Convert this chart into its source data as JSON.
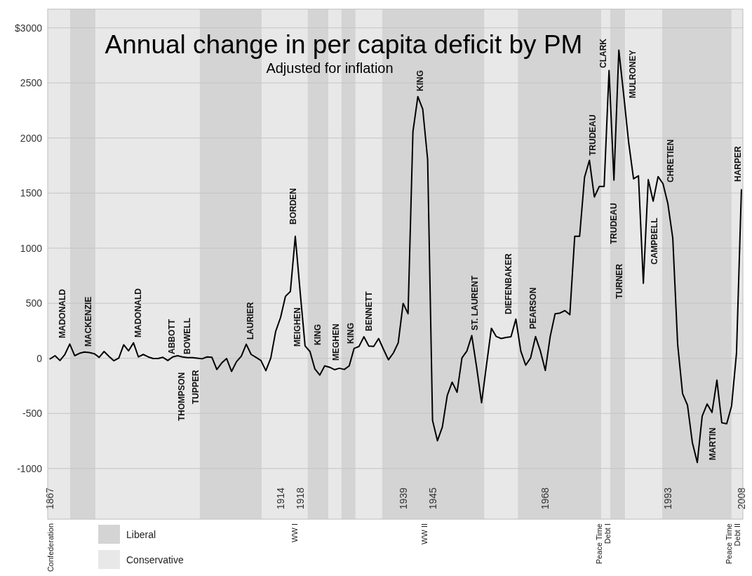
{
  "chart_data": {
    "type": "line",
    "title": "Annual change in per capita deficit by PM",
    "subtitle": "Adjusted for inflation",
    "x": [
      1867,
      1868,
      1869,
      1870,
      1871,
      1872,
      1873,
      1874,
      1875,
      1876,
      1877,
      1878,
      1879,
      1880,
      1881,
      1882,
      1883,
      1884,
      1885,
      1886,
      1887,
      1888,
      1889,
      1890,
      1891,
      1892,
      1893,
      1894,
      1895,
      1896,
      1897,
      1898,
      1899,
      1900,
      1901,
      1902,
      1903,
      1904,
      1905,
      1906,
      1907,
      1908,
      1909,
      1910,
      1911,
      1912,
      1913,
      1914,
      1915,
      1916,
      1917,
      1918,
      1919,
      1920,
      1921,
      1922,
      1923,
      1924,
      1925,
      1926,
      1927,
      1928,
      1929,
      1930,
      1931,
      1932,
      1933,
      1934,
      1935,
      1936,
      1937,
      1938,
      1939,
      1940,
      1941,
      1942,
      1943,
      1944,
      1945,
      1946,
      1947,
      1948,
      1949,
      1950,
      1951,
      1952,
      1953,
      1954,
      1955,
      1956,
      1957,
      1958,
      1959,
      1960,
      1961,
      1962,
      1963,
      1964,
      1965,
      1966,
      1967,
      1968,
      1969,
      1970,
      1971,
      1972,
      1973,
      1974,
      1975,
      1976,
      1977,
      1978,
      1979,
      1980,
      1981,
      1982,
      1983,
      1984,
      1985,
      1986,
      1987,
      1988,
      1989,
      1990,
      1991,
      1992,
      1993,
      1994,
      1995,
      1996,
      1997,
      1998,
      1999,
      2000,
      2001,
      2002,
      2003,
      2004,
      2005,
      2006,
      2007,
      2008
    ],
    "values": [
      -5,
      24,
      -20,
      35,
      130,
      24,
      46,
      57,
      53,
      42,
      9,
      62,
      18,
      -22,
      2,
      123,
      68,
      141,
      13,
      35,
      13,
      -2,
      -2,
      9,
      -20,
      13,
      24,
      13,
      7,
      7,
      2,
      -4,
      13,
      9,
      -101,
      -42,
      -2,
      -119,
      -31,
      20,
      128,
      35,
      9,
      -20,
      -112,
      2,
      244,
      371,
      563,
      607,
      1108,
      600,
      112,
      62,
      -97,
      -152,
      -68,
      -81,
      -103,
      -90,
      -101,
      -68,
      90,
      108,
      196,
      112,
      108,
      180,
      81,
      -13,
      48,
      141,
      499,
      405,
      2057,
      2376,
      2261,
      1805,
      -563,
      -748,
      -623,
      -337,
      -216,
      -308,
      4,
      66,
      207,
      -84,
      -403,
      -62,
      273,
      198,
      180,
      189,
      196,
      356,
      66,
      -62,
      4,
      198,
      66,
      -110,
      198,
      405,
      411,
      433,
      396,
      1108,
      1108,
      1643,
      1798,
      1465,
      1560,
      1560,
      2613,
      1618,
      2798,
      2388,
      1960,
      1630,
      1657,
      681,
      1623,
      1427,
      1650,
      1586,
      1404,
      1092,
      125,
      -321,
      -425,
      -766,
      -946,
      -524,
      -414,
      -491,
      -198,
      -585,
      -594,
      -431,
      48,
      1530
    ],
    "color": "#000000",
    "line_style": "solid",
    "xlim": [
      1866.5,
      2008.3
    ],
    "ylim": [
      -1460,
      3170
    ],
    "xticks": [
      1867,
      1914,
      1918,
      1939,
      1945,
      1968,
      1993,
      2008
    ],
    "yticks": [
      -1000,
      -500,
      0,
      500,
      1000,
      1500,
      2000,
      2500,
      {
        "value": 3000,
        "label": "$3000"
      }
    ],
    "grid": "y",
    "legend": "bottom left",
    "bands": [
      {
        "axis": "x",
        "from": 1871.0,
        "to": 1876.3,
        "label": "Liberal",
        "color": "#d4d4d4"
      },
      {
        "axis": "x",
        "from": 1866.5,
        "to": 1871.0,
        "label": "Conservative",
        "color": "#e8e8e8"
      },
      {
        "axis": "x",
        "from": 1876.3,
        "to": 1897.5,
        "color": "#e8e8e8"
      },
      {
        "axis": "x",
        "from": 1897.5,
        "to": 1910.2,
        "color": "#d4d4d4"
      },
      {
        "axis": "x",
        "from": 1910.2,
        "to": 1919.5,
        "color": "#e8e8e8"
      },
      {
        "axis": "x",
        "from": 1919.5,
        "to": 1923.8,
        "color": "#d4d4d4"
      },
      {
        "axis": "x",
        "from": 1923.8,
        "to": 1926.4,
        "color": "#e8e8e8"
      },
      {
        "axis": "x",
        "from": 1926.4,
        "to": 1929.3,
        "color": "#d4d4d4"
      },
      {
        "axis": "x",
        "from": 1929.3,
        "to": 1934.7,
        "color": "#e8e8e8"
      },
      {
        "axis": "x",
        "from": 1934.7,
        "to": 1955.6,
        "color": "#d4d4d4"
      },
      {
        "axis": "x",
        "from": 1955.6,
        "to": 1962.4,
        "color": "#e8e8e8"
      },
      {
        "axis": "x",
        "from": 1962.4,
        "to": 1979.4,
        "color": "#d4d4d4"
      },
      {
        "axis": "x",
        "from": 1979.4,
        "to": 1981.2,
        "color": "#e8e8e8"
      },
      {
        "axis": "x",
        "from": 1981.2,
        "to": 1984.3,
        "color": "#d4d4d4"
      },
      {
        "axis": "x",
        "from": 1984.3,
        "to": 1991.8,
        "color": "#e8e8e8"
      },
      {
        "axis": "x",
        "from": 1991.8,
        "to": 2006.0,
        "color": "#d4d4d4"
      },
      {
        "axis": "x",
        "from": 2006.0,
        "to": 2008.3,
        "color": "#e8e8e8"
      }
    ],
    "annotations": [
      "MADONALD",
      "MACKENZIE",
      "MADONALD",
      "ABBOTT",
      "THOMPSON",
      "BOWELL",
      "TUPPER",
      "LAURIER",
      "BORDEN",
      "MEIGHEN",
      "KING",
      "MEGHEN",
      "KING",
      "BENNETT",
      "KING",
      "ST. LAURENT",
      "DIEFENBAKER",
      "PEARSON",
      "TRUDEAU",
      "CLARK",
      "TRUDEAU",
      "TURNER",
      "MULRONEY",
      "CAMPBELL",
      "CHRETIEN",
      "MARTIN",
      "HARPER",
      "Confederation",
      "WW I",
      "WW II",
      "Peace Time\nDebt I",
      "Peace Time\nDebt II"
    ]
  }
}
